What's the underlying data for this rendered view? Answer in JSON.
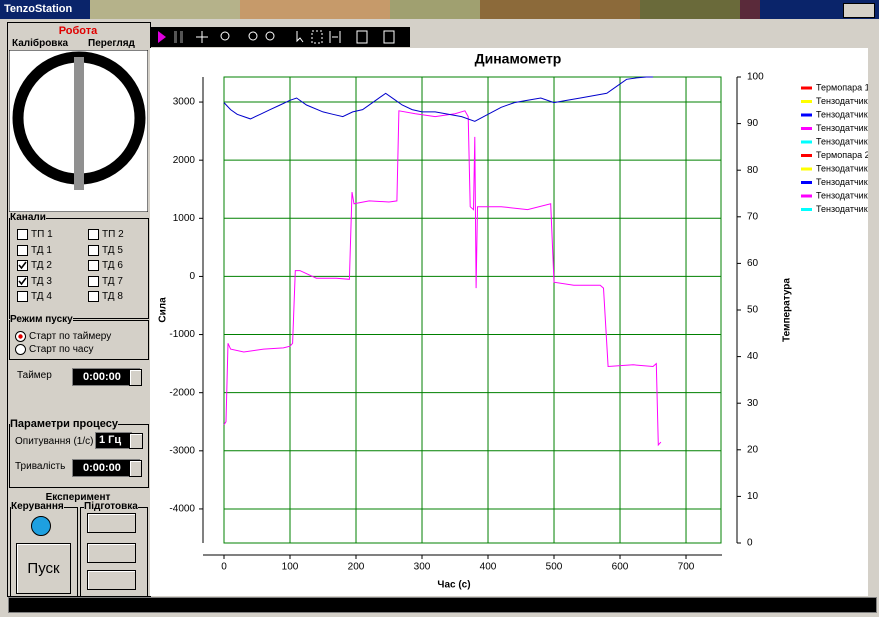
{
  "window": {
    "title": "TenzoStation"
  },
  "panel": {
    "mode": "Робота",
    "tabs": [
      "Калібровка",
      "Перегляд"
    ],
    "channels": {
      "title": "Канали",
      "items": [
        {
          "label": "ТП 1",
          "checked": false
        },
        {
          "label": "ТП 2",
          "checked": false
        },
        {
          "label": "ТД 1",
          "checked": false
        },
        {
          "label": "ТД 5",
          "checked": false
        },
        {
          "label": "ТД 2",
          "checked": true
        },
        {
          "label": "ТД 6",
          "checked": false
        },
        {
          "label": "ТД 3",
          "checked": true
        },
        {
          "label": "ТД 7",
          "checked": false
        },
        {
          "label": "ТД 4",
          "checked": false
        },
        {
          "label": "ТД 8",
          "checked": false
        }
      ]
    },
    "start_mode": {
      "title": "Режим пуску",
      "options": [
        {
          "label": "Старт по таймеру",
          "selected": true
        },
        {
          "label": "Старт по часу",
          "selected": false
        }
      ],
      "timer_label": "Таймер",
      "timer": "0:00:00"
    },
    "process": {
      "title": "Параметри процесу",
      "polling_label": "Опитування (1/с)",
      "polling": "1 Гц",
      "duration_label": "Тривалість",
      "duration": "0:00:00"
    },
    "experiment": {
      "title": "Експеримент",
      "control": "Керування",
      "prep": "Підготовка",
      "start": "Пуск"
    }
  },
  "chart_data": {
    "type": "line",
    "title": "Динамометр",
    "xlabel": "Час (с)",
    "ylabel": "Сила",
    "y2label": "Температура",
    "xlim": [
      0,
      753
    ],
    "xticks": [
      0,
      100,
      200,
      300,
      400,
      500,
      600,
      700
    ],
    "ylim": [
      -4586,
      3431
    ],
    "yticks": [
      -4000,
      -3000,
      -2000,
      -1000,
      0,
      1000,
      2000,
      3000
    ],
    "y2lim": [
      0,
      100
    ],
    "y2ticks": [
      0,
      10,
      20,
      30,
      40,
      50,
      60,
      70,
      80,
      90,
      100
    ],
    "grid": true,
    "grid_color": "#008000",
    "legend": [
      {
        "name": "Термопара 1",
        "color": "#ff0000"
      },
      {
        "name": "Тензодатчик",
        "color": "#ffff00"
      },
      {
        "name": "Тензодатчик",
        "color": "#0000ff"
      },
      {
        "name": "Тензодатчик",
        "color": "#ff00ff"
      },
      {
        "name": "Тензодатчик",
        "color": "#00ffff"
      },
      {
        "name": "Термопара 2",
        "color": "#ff0000"
      },
      {
        "name": "Тензодатчик",
        "color": "#ffff00"
      },
      {
        "name": "Тензодатчик",
        "color": "#0000ff"
      },
      {
        "name": "Тензодатчик",
        "color": "#ff00ff"
      },
      {
        "name": "Тензодатчик",
        "color": "#00ffff"
      }
    ],
    "series": [
      {
        "color": "#ff00ff",
        "x": [
          0,
          3,
          6,
          10,
          30,
          60,
          90,
          100,
          104,
          108,
          115,
          140,
          170,
          190,
          194,
          197,
          220,
          250,
          262,
          265,
          290,
          320,
          350,
          365,
          370,
          373,
          378,
          380,
          382,
          384,
          420,
          460,
          495,
          500,
          530,
          570,
          575,
          582,
          620,
          650,
          655,
          658,
          662
        ],
        "values": [
          -2550,
          -2500,
          -1150,
          -1250,
          -1300,
          -1250,
          -1230,
          -1200,
          -1150,
          100,
          100,
          -30,
          -30,
          -50,
          1450,
          1250,
          1300,
          1280,
          1300,
          2850,
          2800,
          2750,
          2800,
          2850,
          2750,
          1200,
          1150,
          2400,
          -200,
          1200,
          1200,
          1150,
          1250,
          -100,
          -150,
          -150,
          -200,
          -1550,
          -1520,
          -1550,
          -1500,
          -2900,
          -2850
        ]
      },
      {
        "color": "#0000cc",
        "axis": "y2",
        "x": [
          0,
          10,
          20,
          30,
          40,
          55,
          70,
          85,
          100,
          110,
          125,
          150,
          165,
          180,
          195,
          210,
          230,
          245,
          260,
          270,
          285,
          300,
          320,
          340,
          360,
          380,
          400,
          420,
          440,
          460,
          480,
          500,
          520,
          540,
          560,
          580,
          595,
          610,
          625,
          640,
          650
        ],
        "values": [
          94.5,
          93,
          92,
          91.5,
          91,
          92,
          93,
          94,
          95,
          95.5,
          94,
          92.5,
          92,
          91.5,
          92.5,
          93,
          95,
          96.5,
          95,
          94,
          93,
          92.5,
          92.5,
          92,
          91.5,
          90.5,
          92,
          93.5,
          94.5,
          95,
          95.5,
          94.5,
          95,
          95.5,
          96,
          96.5,
          98,
          99.5,
          99.8,
          100,
          100
        ]
      }
    ]
  }
}
